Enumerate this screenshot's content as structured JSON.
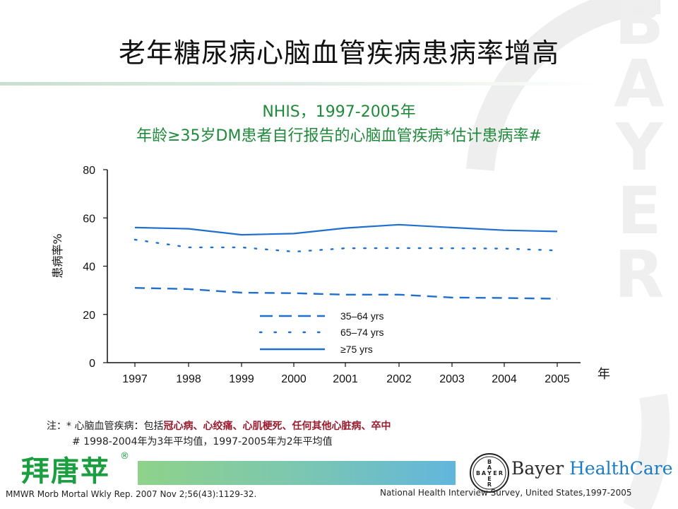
{
  "slide": {
    "title": "老年糖尿病心脑血管疾病患病率增高",
    "subtitle1": "NHIS，1997-2005年",
    "subtitle2": "年龄≥35岁DM患者自行报告的心脑血管疾病*估计患病率#",
    "ylabel": "患病率%",
    "xunit": "年",
    "note1_prefix": "注：* 心脑血管疾病：包括",
    "note1_highlight": "冠心病、心绞痛、心肌梗死、任何其他心脏病、卒中",
    "note2": "# 1998-2004年为3年平均值，1997-2005年为2年平均值",
    "brand_cn": "拜唐苹",
    "brand_reg": "®",
    "company_word1": "Bayer",
    "company_word2": "HealthCare",
    "cross_letters": "BAYER",
    "watermark": "BAYER",
    "reference_left": "MMWR Morb Mortal Wkly Rep. 2007 Nov 2;56(43):1129-32.",
    "reference_right": "National Health Interview Survey, United States,1997-2005",
    "colors": {
      "title": "#111111",
      "subtitle": "#1f8a3a",
      "series": "#1f6fcf",
      "note_highlight": "#9a1b2e",
      "brand": "#1a9e3f",
      "watermark": "#eeeeee"
    }
  },
  "chart_data": {
    "type": "line",
    "x": [
      "1997",
      "1998",
      "1999",
      "2000",
      "2001",
      "2002",
      "2003",
      "2004",
      "2005"
    ],
    "ylim": [
      0,
      80
    ],
    "yticks": [
      0,
      20,
      40,
      60,
      80
    ],
    "ylabel": "患病率%",
    "xlabel": "年",
    "legend_position": "bottom-center",
    "series": [
      {
        "name": "35–64 yrs",
        "style": "dashed",
        "values": [
          31,
          30.5,
          29,
          28.8,
          28.2,
          28.2,
          27,
          26.8,
          26.5
        ]
      },
      {
        "name": "65–74 yrs",
        "style": "dotted",
        "values": [
          51,
          47.8,
          47.8,
          46,
          47.4,
          47.5,
          47.4,
          47.3,
          46.5
        ]
      },
      {
        "name": "≥75 yrs",
        "style": "solid",
        "values": [
          56,
          55.5,
          53,
          53.5,
          55.8,
          57.2,
          56,
          54.9,
          54.4
        ]
      }
    ]
  }
}
